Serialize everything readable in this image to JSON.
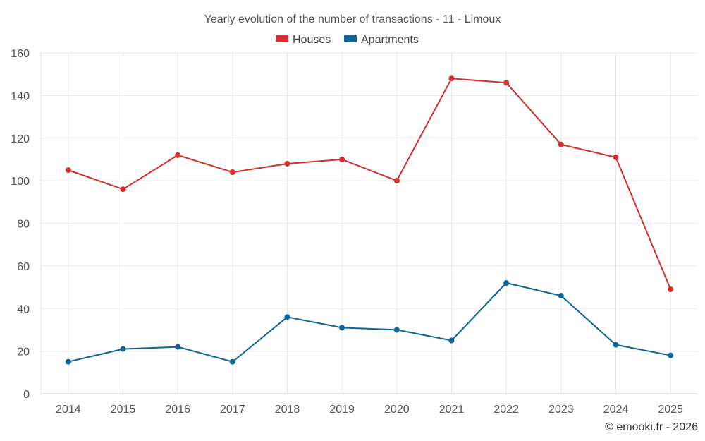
{
  "chart_data": {
    "type": "line",
    "title": "Yearly evolution of the number of transactions - 11 - Limoux",
    "categories": [
      "2014",
      "2015",
      "2016",
      "2017",
      "2018",
      "2019",
      "2020",
      "2021",
      "2022",
      "2023",
      "2024",
      "2025"
    ],
    "series": [
      {
        "name": "Houses",
        "color": "#d32f2f",
        "values": [
          105,
          96,
          112,
          104,
          108,
          110,
          100,
          148,
          146,
          117,
          111,
          49
        ]
      },
      {
        "name": "Apartments",
        "color": "#0d6696",
        "values": [
          15,
          21,
          22,
          15,
          36,
          31,
          30,
          25,
          52,
          46,
          23,
          18
        ]
      }
    ],
    "ylim": [
      0,
      160
    ],
    "yticks": [
      0,
      20,
      40,
      60,
      80,
      100,
      120,
      140,
      160
    ],
    "legend_position": "top-center",
    "grid": true
  },
  "footer": {
    "credit": "© emooki.fr - 2026"
  }
}
